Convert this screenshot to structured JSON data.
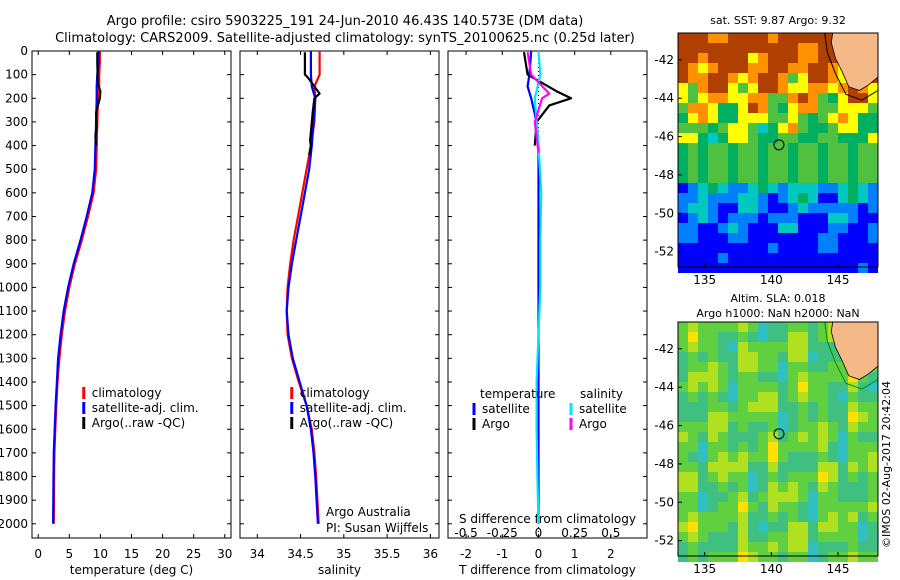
{
  "header": {
    "title_line1": "Argo profile: csiro 5903225_191 24-Jun-2010 46.43S 140.573E (DM data)",
    "title_line2": "Climatology: CARS2009. Satellite-adjusted climatology: synTS_20100625.nc (0.25d later)"
  },
  "colors": {
    "climatology": "#ff0000",
    "satellite": "#0000ff",
    "argo": "#000000",
    "sal_satellite": "#00e5ff",
    "sal_argo": "#ff00ff"
  },
  "depth_axis": {
    "ylim": [
      0,
      2060
    ],
    "ticks": [
      0,
      100,
      200,
      300,
      400,
      500,
      600,
      700,
      800,
      900,
      1000,
      1100,
      1200,
      1300,
      1400,
      1500,
      1600,
      1700,
      1800,
      1900,
      2000
    ]
  },
  "chart_data": [
    {
      "id": "temperature",
      "type": "line",
      "xlabel": "temperature (deg C)",
      "ylabel": "",
      "xlim": [
        -1,
        31
      ],
      "ylim": [
        0,
        2060
      ],
      "y_reversed": true,
      "xticks": [
        0,
        5,
        10,
        15,
        20,
        25,
        30
      ],
      "legend": {
        "placement": "lower-center",
        "entries": [
          "climatology",
          "satellite-adj. clim.",
          "Argo(..raw -QC)"
        ]
      },
      "series": [
        {
          "name": "climatology",
          "color": "#ff0000",
          "x": [
            9.9,
            9.9,
            9.8,
            9.8,
            9.6,
            9.5,
            9.4,
            9.3,
            8.9,
            8.0,
            7.0,
            5.9,
            5.0,
            4.3,
            3.8,
            3.4,
            3.1,
            2.9,
            2.75,
            2.6,
            2.55,
            2.5
          ],
          "y": [
            0,
            50,
            100,
            150,
            200,
            300,
            400,
            500,
            600,
            700,
            800,
            900,
            1000,
            1100,
            1200,
            1300,
            1400,
            1500,
            1600,
            1700,
            1800,
            2000
          ]
        },
        {
          "name": "satellite-adj. clim.",
          "color": "#0000ff",
          "x": [
            9.7,
            9.7,
            9.5,
            9.4,
            9.4,
            9.3,
            9.2,
            9.1,
            8.7,
            7.8,
            6.8,
            5.7,
            4.8,
            4.1,
            3.6,
            3.2,
            3.0,
            2.8,
            2.65,
            2.5,
            2.45,
            2.4
          ],
          "y": [
            0,
            50,
            100,
            150,
            200,
            300,
            400,
            500,
            600,
            700,
            800,
            900,
            1000,
            1100,
            1200,
            1300,
            1400,
            1500,
            1600,
            1700,
            1800,
            2000
          ]
        },
        {
          "name": "Argo(..raw -QC)",
          "color": "#000000",
          "x": [
            9.5,
            9.5,
            9.6,
            10.0,
            9.9,
            9.3,
            9.4,
            9.2,
            9.3
          ],
          "y": [
            5,
            50,
            140,
            170,
            200,
            260,
            320,
            360,
            400
          ]
        }
      ]
    },
    {
      "id": "salinity",
      "type": "line",
      "xlabel": "salinity",
      "ylabel": "",
      "xlim": [
        33.8,
        36.1
      ],
      "ylim": [
        0,
        2060
      ],
      "y_reversed": true,
      "xticks": [
        34,
        34.5,
        35,
        35.5,
        36
      ],
      "legend": {
        "placement": "lower-center",
        "entries": [
          "climatology",
          "satellite-adj. clim.",
          "Argo(..raw -QC)"
        ]
      },
      "annotation": [
        "Argo Australia",
        "PI: Susan Wijffels"
      ],
      "series": [
        {
          "name": "climatology",
          "color": "#ff0000",
          "x": [
            34.72,
            34.72,
            34.72,
            34.66,
            34.67,
            34.66,
            34.62,
            34.57,
            34.52,
            34.47,
            34.42,
            34.38,
            34.35,
            34.34,
            34.35,
            34.4,
            34.48,
            34.57,
            34.63,
            34.66,
            34.68,
            34.71
          ],
          "y": [
            0,
            50,
            100,
            150,
            200,
            300,
            400,
            500,
            600,
            700,
            800,
            900,
            1000,
            1100,
            1200,
            1300,
            1400,
            1500,
            1600,
            1700,
            1800,
            2000
          ]
        },
        {
          "name": "satellite-adj. clim.",
          "color": "#0000ff",
          "x": [
            34.62,
            34.62,
            34.62,
            34.63,
            34.67,
            34.65,
            34.63,
            34.6,
            34.55,
            34.5,
            34.45,
            34.4,
            34.36,
            34.34,
            34.36,
            34.41,
            34.49,
            34.57,
            34.62,
            34.65,
            34.67,
            34.7
          ],
          "y": [
            0,
            50,
            100,
            150,
            200,
            300,
            400,
            500,
            600,
            700,
            800,
            900,
            1000,
            1100,
            1200,
            1300,
            1400,
            1500,
            1600,
            1700,
            1800,
            2000
          ]
        },
        {
          "name": "Argo(..raw -QC)",
          "color": "#000000",
          "x": [
            34.55,
            34.55,
            34.58,
            34.72,
            34.66,
            34.64,
            34.61,
            34.62,
            34.6
          ],
          "y": [
            5,
            100,
            110,
            180,
            200,
            260,
            380,
            400,
            440
          ]
        }
      ]
    },
    {
      "id": "difference",
      "type": "line",
      "xlabel": "T difference from climatology",
      "xlabel_top": "S difference from climatology",
      "xlim": [
        -2.5,
        3.0
      ],
      "ylim": [
        0,
        2060
      ],
      "y_reversed": true,
      "xticks": [
        -2,
        -1,
        0,
        1,
        2
      ],
      "xticks_labels": [
        "-2",
        "-1",
        "0",
        "1",
        "2"
      ],
      "s_ticks": [
        -0.5,
        -0.25,
        0,
        0.25,
        0.5
      ],
      "s_ticks_labels": [
        "-0.5",
        "-0.25",
        "0",
        "0.25",
        "0.5"
      ],
      "legend": {
        "placement": "lower-center",
        "left_title": "temperature",
        "right_title": "salinity",
        "left_entries": [
          "satellite",
          "Argo"
        ],
        "right_entries": [
          "satellite",
          "Argo"
        ]
      },
      "series": [
        {
          "name": "temperature satellite",
          "color": "#0000ff",
          "x": [
            -0.2,
            -0.25,
            -0.3,
            -0.2,
            -0.05,
            0.0,
            0.0,
            0.0,
            0.0,
            0.0,
            0.0,
            0.0,
            0.0
          ],
          "y": [
            0,
            100,
            150,
            200,
            300,
            400,
            600,
            800,
            1000,
            1200,
            1400,
            1600,
            2000
          ]
        },
        {
          "name": "temperature Argo",
          "color": "#000000",
          "x": [
            -0.4,
            -0.3,
            0.5,
            0.9,
            0.3,
            -0.05,
            -0.1
          ],
          "y": [
            5,
            100,
            170,
            200,
            230,
            300,
            400
          ]
        },
        {
          "name": "salinity satellite",
          "color": "#00e5ff",
          "x": [
            0.0,
            0.05,
            -0.1,
            -0.05,
            0.0,
            0.08,
            0.05,
            0.05,
            0.0,
            -0.05,
            -0.05,
            -0.03,
            0.0
          ],
          "y": [
            0,
            100,
            200,
            300,
            400,
            600,
            800,
            1000,
            1200,
            1400,
            1600,
            1800,
            2000
          ]
        },
        {
          "name": "salinity Argo",
          "color": "#ff00ff",
          "x": [
            -0.3,
            -0.2,
            0.3,
            0.1,
            -0.1,
            0.0
          ],
          "y": [
            5,
            100,
            180,
            200,
            300,
            430
          ]
        }
      ]
    }
  ],
  "maps": [
    {
      "id": "sst-map",
      "title_lines": [
        "sat. SST: 9.87 Argo: 9.32"
      ],
      "xlim": [
        133,
        148
      ],
      "ylim": [
        -52.8,
        -40.6
      ],
      "xticks": [
        135,
        140,
        145
      ],
      "yticks": [
        -42,
        -44,
        -46,
        -48,
        -50,
        -52
      ],
      "marker": {
        "lon": 140.573,
        "lat": -46.43
      },
      "field": "sst"
    },
    {
      "id": "sla-map",
      "title_lines": [
        "Altim. SLA: 0.018",
        "Argo h1000: NaN h2000: NaN"
      ],
      "xlim": [
        133,
        148
      ],
      "ylim": [
        -52.8,
        -40.6
      ],
      "xticks": [
        135,
        140,
        145
      ],
      "yticks": [
        -42,
        -44,
        -46,
        -48,
        -50,
        -52
      ],
      "marker": {
        "lon": 140.573,
        "lat": -46.43
      },
      "field": "sla"
    }
  ],
  "side_credit": "©IMOS 02-Aug-2017 20:42:04"
}
